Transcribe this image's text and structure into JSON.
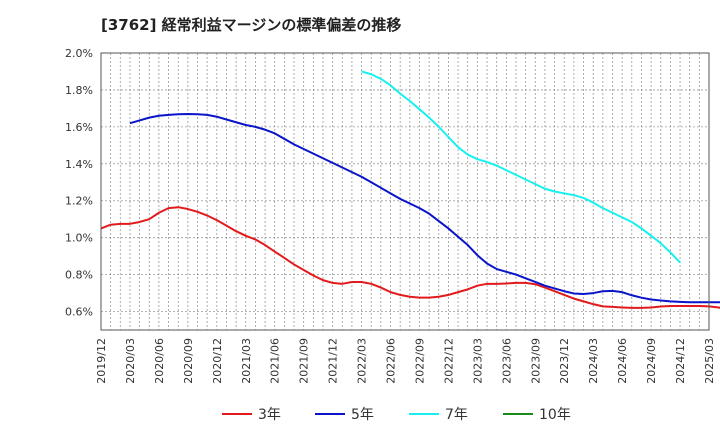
{
  "chart_data": {
    "type": "line",
    "title": "[3762]  経常利益マージンの標準偏差の推移",
    "xlabel": "",
    "ylabel": "",
    "ylim": [
      0.5,
      2.0
    ],
    "y_ticks": [
      0.6,
      0.8,
      1.0,
      1.2,
      1.4,
      1.6,
      1.8,
      2.0
    ],
    "y_tick_labels": [
      "0.6%",
      "0.8%",
      "1.0%",
      "1.2%",
      "1.4%",
      "1.6%",
      "1.8%",
      "2.0%"
    ],
    "x_start": "2019/12",
    "x_tick_labels": [
      "2019/12",
      "2020/03",
      "2020/06",
      "2020/09",
      "2020/12",
      "2021/03",
      "2021/06",
      "2021/09",
      "2021/12",
      "2022/03",
      "2022/06",
      "2022/09",
      "2022/12",
      "2023/03",
      "2023/06",
      "2023/09",
      "2023/12",
      "2024/03",
      "2024/06",
      "2024/09",
      "2024/12",
      "2025/03"
    ],
    "grid": true,
    "legend_position": "bottom",
    "series": [
      {
        "name": "3年",
        "color": "#e31a1c",
        "start": "2019/12",
        "values": [
          1.05,
          1.07,
          1.075,
          1.075,
          1.085,
          1.1,
          1.135,
          1.16,
          1.165,
          1.155,
          1.14,
          1.12,
          1.095,
          1.065,
          1.035,
          1.01,
          0.99,
          0.96,
          0.925,
          0.89,
          0.855,
          0.825,
          0.795,
          0.77,
          0.755,
          0.75,
          0.76,
          0.76,
          0.75,
          0.73,
          0.705,
          0.69,
          0.68,
          0.675,
          0.675,
          0.68,
          0.69,
          0.705,
          0.72,
          0.74,
          0.75,
          0.75,
          0.752,
          0.755,
          0.755,
          0.748,
          0.73,
          0.71,
          0.69,
          0.67,
          0.655,
          0.64,
          0.628,
          0.625,
          0.622,
          0.62,
          0.62,
          0.622,
          0.627,
          0.63,
          0.63,
          0.63,
          0.63,
          0.628,
          0.622,
          0.605,
          0.57
        ]
      },
      {
        "name": "5年",
        "color": "#0a14c8",
        "start": "2020/03",
        "values": [
          1.62,
          1.635,
          1.65,
          1.66,
          1.665,
          1.668,
          1.67,
          1.668,
          1.665,
          1.655,
          1.64,
          1.625,
          1.61,
          1.6,
          1.585,
          1.565,
          1.535,
          1.505,
          1.48,
          1.455,
          1.43,
          1.405,
          1.38,
          1.355,
          1.33,
          1.3,
          1.27,
          1.24,
          1.21,
          1.185,
          1.16,
          1.13,
          1.09,
          1.05,
          1.005,
          0.96,
          0.905,
          0.86,
          0.83,
          0.815,
          0.8,
          0.78,
          0.76,
          0.74,
          0.725,
          0.71,
          0.698,
          0.695,
          0.7,
          0.71,
          0.712,
          0.705,
          0.688,
          0.675,
          0.665,
          0.66,
          0.655,
          0.652,
          0.65,
          0.65,
          0.65,
          0.65,
          0.65,
          0.65
        ]
      },
      {
        "name": "7年",
        "color": "#18f0f0",
        "start": "2022/03",
        "values": [
          1.9,
          1.885,
          1.86,
          1.825,
          1.78,
          1.74,
          1.695,
          1.65,
          1.6,
          1.545,
          1.49,
          1.45,
          1.425,
          1.41,
          1.39,
          1.365,
          1.34,
          1.315,
          1.29,
          1.265,
          1.25,
          1.24,
          1.23,
          1.215,
          1.19,
          1.16,
          1.135,
          1.11,
          1.085,
          1.05,
          1.01,
          0.97,
          0.92,
          0.865
        ]
      },
      {
        "name": "10年",
        "color": "#1a8a1a",
        "start": "2019/12",
        "values": []
      }
    ]
  }
}
